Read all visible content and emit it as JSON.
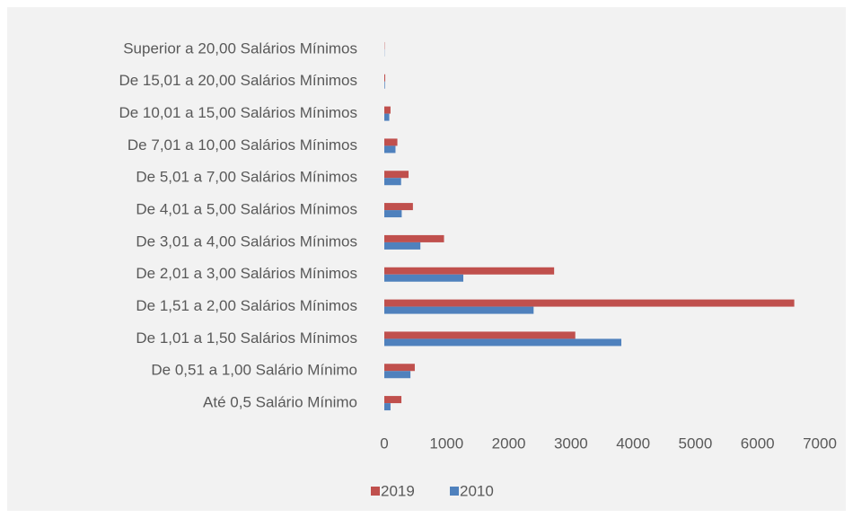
{
  "chart_data": {
    "type": "bar",
    "orientation": "horizontal",
    "categories": [
      "Superior a 20,00 Salários Mínimos",
      "De 15,01 a 20,00 Salários Mínimos",
      "De 10,01 a 15,00 Salários Mínimos",
      "De 7,01 a 10,00 Salários Mínimos",
      "De 5,01 a 7,00 Salários Mínimos",
      "De 4,01 a 5,00 Salários Mínimos",
      "De 3,01 a 4,00 Salários Mínimos",
      "De 2,01 a 3,00 Salários Mínimos",
      "De 1,51 a 2,00 Salários Mínimos",
      "De 1,01 a 1,50 Salários Mínimos",
      "De 0,51 a 1,00 Salário Mínimo",
      "Até 0,5 Salário Mínimo"
    ],
    "series": [
      {
        "name": "2019",
        "color": "#c0504d",
        "values": [
          5,
          15,
          100,
          210,
          390,
          460,
          960,
          2730,
          6590,
          3070,
          490,
          275
        ]
      },
      {
        "name": "2010",
        "color": "#4f81bd",
        "values": [
          3,
          10,
          80,
          180,
          270,
          280,
          580,
          1270,
          2400,
          3810,
          420,
          100
        ]
      }
    ],
    "xlim": [
      0,
      7000
    ],
    "xticks": [
      0,
      1000,
      2000,
      3000,
      4000,
      5000,
      6000,
      7000
    ],
    "legend": "bottom"
  }
}
